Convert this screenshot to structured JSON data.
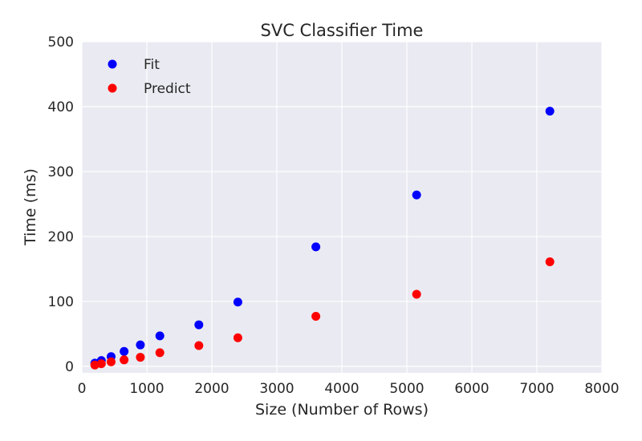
{
  "chart_data": {
    "type": "scatter",
    "title": "SVC Classifier Time",
    "xlabel": "Size (Number of Rows)",
    "ylabel": "Time (ms)",
    "xlim": [
      0,
      8000
    ],
    "ylim": [
      -10,
      500
    ],
    "xticks": [
      0,
      1000,
      2000,
      3000,
      4000,
      5000,
      6000,
      7000,
      8000
    ],
    "yticks": [
      0,
      100,
      200,
      300,
      400,
      500
    ],
    "grid": true,
    "legend_position": "top-left",
    "background_color": "#eaeaf2",
    "series": [
      {
        "name": "Fit",
        "color": "#0000ff",
        "points": [
          [
            200,
            5
          ],
          [
            300,
            9
          ],
          [
            450,
            15
          ],
          [
            650,
            23
          ],
          [
            900,
            33
          ],
          [
            1200,
            47
          ],
          [
            1800,
            64
          ],
          [
            2400,
            99
          ],
          [
            3600,
            184
          ],
          [
            5150,
            264
          ],
          [
            7200,
            393
          ]
        ]
      },
      {
        "name": "Predict",
        "color": "#ff0000",
        "points": [
          [
            200,
            2
          ],
          [
            300,
            4
          ],
          [
            450,
            7
          ],
          [
            650,
            10
          ],
          [
            900,
            14
          ],
          [
            1200,
            21
          ],
          [
            1800,
            32
          ],
          [
            2400,
            44
          ],
          [
            3600,
            77
          ],
          [
            5150,
            111
          ],
          [
            7200,
            161
          ]
        ]
      }
    ]
  }
}
